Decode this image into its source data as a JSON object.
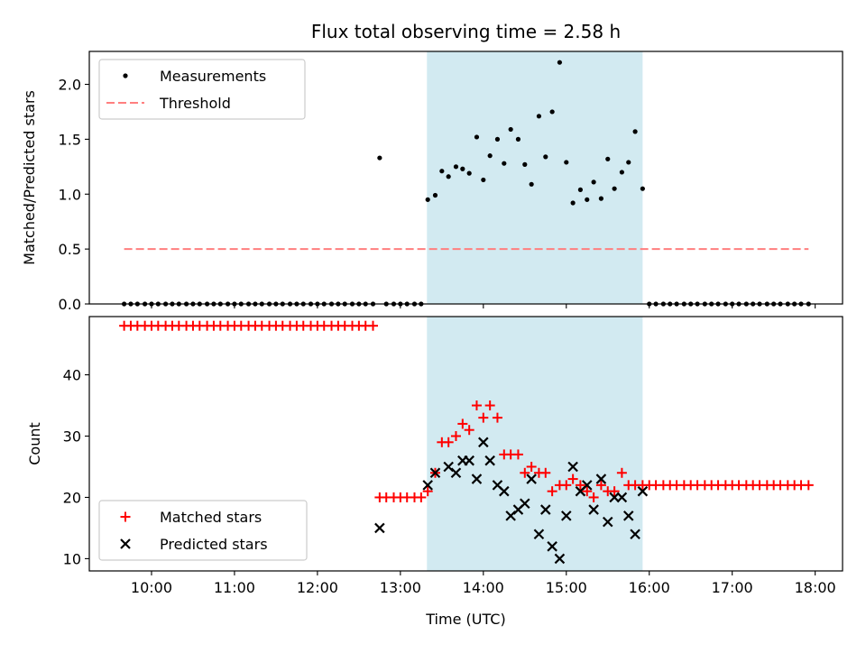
{
  "chart_data": [
    {
      "type": "scatter",
      "title": "Flux total observing time = 2.58 h",
      "xlabel": "",
      "ylabel": "Matched/Predicted stars",
      "ylim": [
        0,
        2.3
      ],
      "yticks": [
        "0.0",
        "0.5",
        "1.0",
        "1.5",
        "2.0"
      ],
      "legend_position": "top-left",
      "highlight_span": {
        "x_start": 13.32,
        "x_end": 15.92,
        "color": "#add8e6"
      },
      "series": [
        {
          "name": "Measurements",
          "kind": "points",
          "color": "#000000",
          "x": [
            9.67,
            9.75,
            9.83,
            9.92,
            10.0,
            10.08,
            10.17,
            10.25,
            10.33,
            10.42,
            10.5,
            10.58,
            10.67,
            10.75,
            10.83,
            10.92,
            11.0,
            11.08,
            11.17,
            11.25,
            11.33,
            11.42,
            11.5,
            11.58,
            11.67,
            11.75,
            11.83,
            11.92,
            12.0,
            12.08,
            12.17,
            12.25,
            12.33,
            12.42,
            12.5,
            12.58,
            12.67,
            12.75,
            12.83,
            12.92,
            13.0,
            13.08,
            13.17,
            13.25,
            13.33,
            13.42,
            13.5,
            13.58,
            13.67,
            13.75,
            13.83,
            13.92,
            14.0,
            14.08,
            14.17,
            14.25,
            14.33,
            14.42,
            14.5,
            14.58,
            14.67,
            14.75,
            14.83,
            14.92,
            15.0,
            15.08,
            15.17,
            15.25,
            15.33,
            15.42,
            15.5,
            15.58,
            15.67,
            15.75,
            15.83,
            15.92,
            16.0,
            16.08,
            16.17,
            16.25,
            16.33,
            16.42,
            16.5,
            16.58,
            16.67,
            16.75,
            16.83,
            16.92,
            17.0,
            17.08,
            17.17,
            17.25,
            17.33,
            17.42,
            17.5,
            17.58,
            17.67,
            17.75,
            17.83,
            17.92
          ],
          "y": [
            0,
            0,
            0,
            0,
            0,
            0,
            0,
            0,
            0,
            0,
            0,
            0,
            0,
            0,
            0,
            0,
            0,
            0,
            0,
            0,
            0,
            0,
            0,
            0,
            0,
            0,
            0,
            0,
            0,
            0,
            0,
            0,
            0,
            0,
            0,
            0,
            0,
            1.33,
            0,
            0,
            0,
            0,
            0,
            0,
            0.95,
            0.99,
            1.21,
            1.16,
            1.25,
            1.23,
            1.19,
            1.52,
            1.13,
            1.35,
            1.5,
            1.28,
            1.59,
            1.5,
            1.27,
            1.09,
            1.71,
            1.34,
            1.75,
            2.2,
            1.29,
            0.92,
            1.04,
            0.95,
            1.11,
            0.96,
            1.32,
            1.05,
            1.2,
            1.29,
            1.57,
            1.05,
            0,
            0,
            0,
            0,
            0,
            0,
            0,
            0,
            0,
            0,
            0,
            0,
            0,
            0,
            0,
            0,
            0,
            0,
            0,
            0,
            0,
            0,
            0,
            0
          ]
        },
        {
          "name": "Threshold",
          "kind": "dashed-line",
          "color": "#ff7f7f",
          "x": [
            9.67,
            17.92
          ],
          "y": [
            0.5,
            0.5
          ]
        }
      ]
    },
    {
      "type": "scatter",
      "xlabel": "Time (UTC)",
      "ylabel": "Count",
      "ylim": [
        8,
        49.5
      ],
      "yticks": [
        "10",
        "20",
        "30",
        "40"
      ],
      "xlim": [
        9.25,
        18.33
      ],
      "xticks": [
        "10:00",
        "11:00",
        "12:00",
        "13:00",
        "14:00",
        "15:00",
        "16:00",
        "17:00",
        "18:00"
      ],
      "legend_position": "bottom-left",
      "series": [
        {
          "name": "Matched stars",
          "kind": "plus",
          "color": "#ff0000",
          "x": [
            9.67,
            9.75,
            9.83,
            9.92,
            10.0,
            10.08,
            10.17,
            10.25,
            10.33,
            10.42,
            10.5,
            10.58,
            10.67,
            10.75,
            10.83,
            10.92,
            11.0,
            11.08,
            11.17,
            11.25,
            11.33,
            11.42,
            11.5,
            11.58,
            11.67,
            11.75,
            11.83,
            11.92,
            12.0,
            12.08,
            12.17,
            12.25,
            12.33,
            12.42,
            12.5,
            12.58,
            12.67,
            12.75,
            12.83,
            12.92,
            13.0,
            13.08,
            13.17,
            13.25,
            13.33,
            13.42,
            13.5,
            13.58,
            13.67,
            13.75,
            13.83,
            13.92,
            14.0,
            14.08,
            14.17,
            14.25,
            14.33,
            14.42,
            14.5,
            14.58,
            14.67,
            14.75,
            14.83,
            14.92,
            15.0,
            15.08,
            15.17,
            15.25,
            15.33,
            15.42,
            15.5,
            15.58,
            15.67,
            15.75,
            15.83,
            15.92,
            16.0,
            16.08,
            16.17,
            16.25,
            16.33,
            16.42,
            16.5,
            16.58,
            16.67,
            16.75,
            16.83,
            16.92,
            17.0,
            17.08,
            17.17,
            17.25,
            17.33,
            17.42,
            17.5,
            17.58,
            17.67,
            17.75,
            17.83,
            17.92
          ],
          "y": [
            48,
            48,
            48,
            48,
            48,
            48,
            48,
            48,
            48,
            48,
            48,
            48,
            48,
            48,
            48,
            48,
            48,
            48,
            48,
            48,
            48,
            48,
            48,
            48,
            48,
            48,
            48,
            48,
            48,
            48,
            48,
            48,
            48,
            48,
            48,
            48,
            48,
            20,
            20,
            20,
            20,
            20,
            20,
            20,
            21,
            24,
            29,
            29,
            30,
            32,
            31,
            35,
            33,
            35,
            33,
            27,
            27,
            27,
            24,
            25,
            24,
            24,
            21,
            22,
            22,
            23,
            22,
            21,
            20,
            22,
            21,
            21,
            24,
            22,
            22,
            22,
            22,
            22,
            22,
            22,
            22,
            22,
            22,
            22,
            22,
            22,
            22,
            22,
            22,
            22,
            22,
            22,
            22,
            22,
            22,
            22,
            22,
            22,
            22,
            22
          ]
        },
        {
          "name": "Predicted stars",
          "kind": "x",
          "color": "#000000",
          "x": [
            12.75,
            13.33,
            13.42,
            13.58,
            13.67,
            13.75,
            13.83,
            13.92,
            14.0,
            14.08,
            14.17,
            14.25,
            14.33,
            14.42,
            14.5,
            14.58,
            14.67,
            14.75,
            14.83,
            14.92,
            15.0,
            15.08,
            15.17,
            15.25,
            15.33,
            15.42,
            15.5,
            15.58,
            15.67,
            15.75,
            15.83,
            15.92
          ],
          "y": [
            15,
            22,
            24,
            25,
            24,
            26,
            26,
            23,
            29,
            26,
            22,
            21,
            17,
            18,
            19,
            23,
            14,
            18,
            12,
            10,
            17,
            25,
            21,
            22,
            18,
            23,
            16,
            20,
            20,
            17,
            14,
            21
          ]
        }
      ]
    }
  ]
}
